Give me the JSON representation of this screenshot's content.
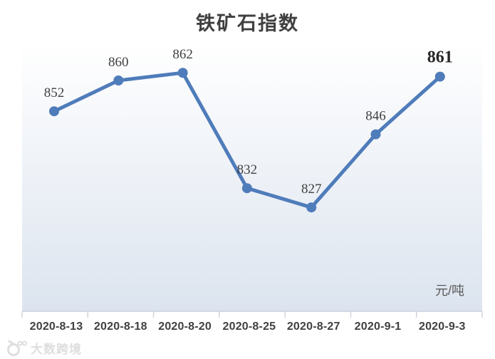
{
  "chart_data": {
    "type": "line",
    "title": "铁矿石指数",
    "unit_label": "元/吨",
    "categories": [
      "2020-8-13",
      "2020-8-18",
      "2020-8-20",
      "2020-8-25",
      "2020-8-27",
      "2020-9-1",
      "2020-9-3"
    ],
    "series": [
      {
        "name": "铁矿石指数",
        "values": [
          852,
          860,
          862,
          832,
          827,
          846,
          861
        ],
        "color": "#4f7cba"
      }
    ],
    "ylim": [
      800,
      870
    ],
    "grid": false,
    "legend_position": "none",
    "data_labels": {
      "position": "above",
      "color": "#3f3f3f",
      "last_point_emphasized": true,
      "emphasized_color": "#262626"
    },
    "axis": {
      "line_color": "#ccd1da",
      "tick_color": "#ccd1da",
      "label_color": "#404040"
    },
    "plot_background": {
      "top_color": "#ffffff",
      "bottom_color": "#dce4ef"
    }
  },
  "watermark": {
    "text": "大数跨境",
    "icon": "camera-logo-icon"
  }
}
